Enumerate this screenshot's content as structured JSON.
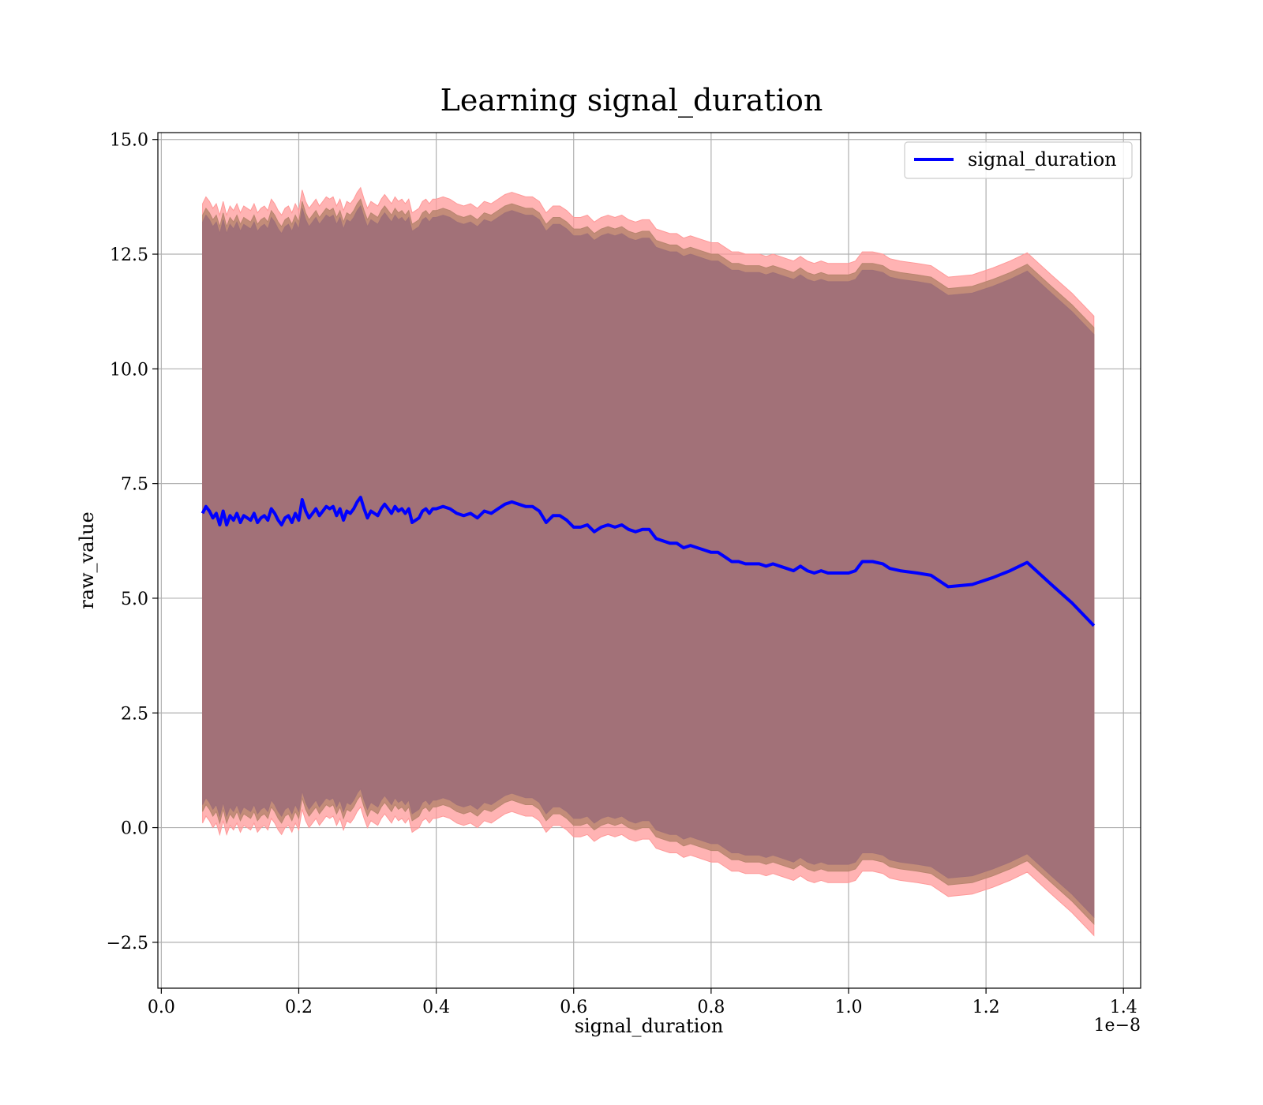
{
  "chart_data": {
    "type": "line",
    "title": "Learning signal_duration",
    "xlabel": "signal_duration",
    "ylabel": "raw_value",
    "x_offset_label": "1e−8",
    "xlim": [
      -0.005,
      1.425
    ],
    "ylim": [
      -3.5,
      15.15
    ],
    "x_ticks": [
      0.0,
      0.2,
      0.4,
      0.6,
      0.8,
      1.0,
      1.2,
      1.4
    ],
    "x_tick_labels": [
      "0.0",
      "0.2",
      "0.4",
      "0.6",
      "0.8",
      "1.0",
      "1.2",
      "1.4"
    ],
    "y_ticks": [
      -2.5,
      0.0,
      2.5,
      5.0,
      7.5,
      10.0,
      12.5,
      15.0
    ],
    "y_tick_labels": [
      "−2.5",
      "0.0",
      "2.5",
      "5.0",
      "7.5",
      "10.0",
      "12.5",
      "15.0"
    ],
    "grid": true,
    "legend": {
      "placement": "top-right",
      "entries": [
        "signal_duration"
      ]
    },
    "colors": {
      "line": "#0000ff",
      "band_outer": "#ff9999",
      "band_mid": "#b9856f",
      "band_inner": "#a07078"
    },
    "series": [
      {
        "name": "signal_duration",
        "x": [
          0.06,
          0.065,
          0.07,
          0.075,
          0.08,
          0.085,
          0.09,
          0.095,
          0.1,
          0.105,
          0.11,
          0.115,
          0.12,
          0.125,
          0.13,
          0.135,
          0.14,
          0.145,
          0.15,
          0.155,
          0.16,
          0.165,
          0.17,
          0.175,
          0.18,
          0.185,
          0.19,
          0.195,
          0.2,
          0.205,
          0.21,
          0.215,
          0.22,
          0.225,
          0.23,
          0.235,
          0.24,
          0.245,
          0.25,
          0.255,
          0.26,
          0.265,
          0.27,
          0.275,
          0.28,
          0.285,
          0.29,
          0.295,
          0.3,
          0.305,
          0.31,
          0.315,
          0.32,
          0.325,
          0.33,
          0.335,
          0.34,
          0.345,
          0.35,
          0.355,
          0.36,
          0.365,
          0.37,
          0.375,
          0.38,
          0.385,
          0.39,
          0.395,
          0.4,
          0.41,
          0.42,
          0.43,
          0.44,
          0.45,
          0.46,
          0.47,
          0.48,
          0.49,
          0.5,
          0.51,
          0.52,
          0.53,
          0.54,
          0.55,
          0.56,
          0.57,
          0.58,
          0.59,
          0.6,
          0.61,
          0.62,
          0.63,
          0.64,
          0.65,
          0.66,
          0.67,
          0.68,
          0.69,
          0.7,
          0.71,
          0.72,
          0.73,
          0.74,
          0.75,
          0.76,
          0.77,
          0.78,
          0.79,
          0.8,
          0.81,
          0.82,
          0.83,
          0.84,
          0.85,
          0.86,
          0.87,
          0.88,
          0.89,
          0.9,
          0.91,
          0.92,
          0.93,
          0.94,
          0.95,
          0.96,
          0.97,
          0.98,
          0.99,
          1.0,
          1.01,
          1.02,
          1.035,
          1.05,
          1.06,
          1.075,
          1.1,
          1.12,
          1.145,
          1.18,
          1.21,
          1.235,
          1.26,
          1.295,
          1.325,
          1.357
        ],
        "values": [
          6.85,
          7.0,
          6.9,
          6.75,
          6.85,
          6.6,
          6.9,
          6.6,
          6.8,
          6.7,
          6.85,
          6.65,
          6.8,
          6.75,
          6.7,
          6.85,
          6.65,
          6.75,
          6.8,
          6.7,
          6.95,
          6.85,
          6.7,
          6.6,
          6.75,
          6.8,
          6.65,
          6.85,
          6.7,
          7.15,
          6.9,
          6.75,
          6.85,
          6.95,
          6.8,
          6.9,
          7.0,
          6.95,
          7.0,
          6.8,
          6.95,
          6.7,
          6.9,
          6.85,
          6.95,
          7.1,
          7.2,
          6.95,
          6.75,
          6.9,
          6.85,
          6.8,
          6.95,
          7.05,
          6.95,
          6.85,
          7.0,
          6.9,
          6.95,
          6.85,
          6.95,
          6.65,
          6.7,
          6.75,
          6.9,
          6.95,
          6.85,
          6.95,
          6.95,
          7.0,
          6.95,
          6.85,
          6.8,
          6.85,
          6.75,
          6.9,
          6.85,
          6.95,
          7.05,
          7.1,
          7.05,
          7.0,
          7.0,
          6.9,
          6.65,
          6.8,
          6.8,
          6.7,
          6.55,
          6.55,
          6.6,
          6.45,
          6.55,
          6.6,
          6.55,
          6.6,
          6.5,
          6.45,
          6.5,
          6.5,
          6.3,
          6.25,
          6.2,
          6.2,
          6.1,
          6.15,
          6.1,
          6.05,
          6.0,
          6.0,
          5.9,
          5.8,
          5.8,
          5.75,
          5.75,
          5.75,
          5.7,
          5.75,
          5.7,
          5.65,
          5.6,
          5.7,
          5.6,
          5.55,
          5.6,
          5.55,
          5.55,
          5.55,
          5.55,
          5.6,
          5.8,
          5.8,
          5.75,
          5.65,
          5.6,
          5.55,
          5.5,
          5.25,
          5.3,
          5.45,
          5.6,
          5.78,
          5.3,
          4.9,
          4.4
        ]
      }
    ],
    "band_offsets": [
      6.75,
      6.5,
      6.35
    ]
  }
}
